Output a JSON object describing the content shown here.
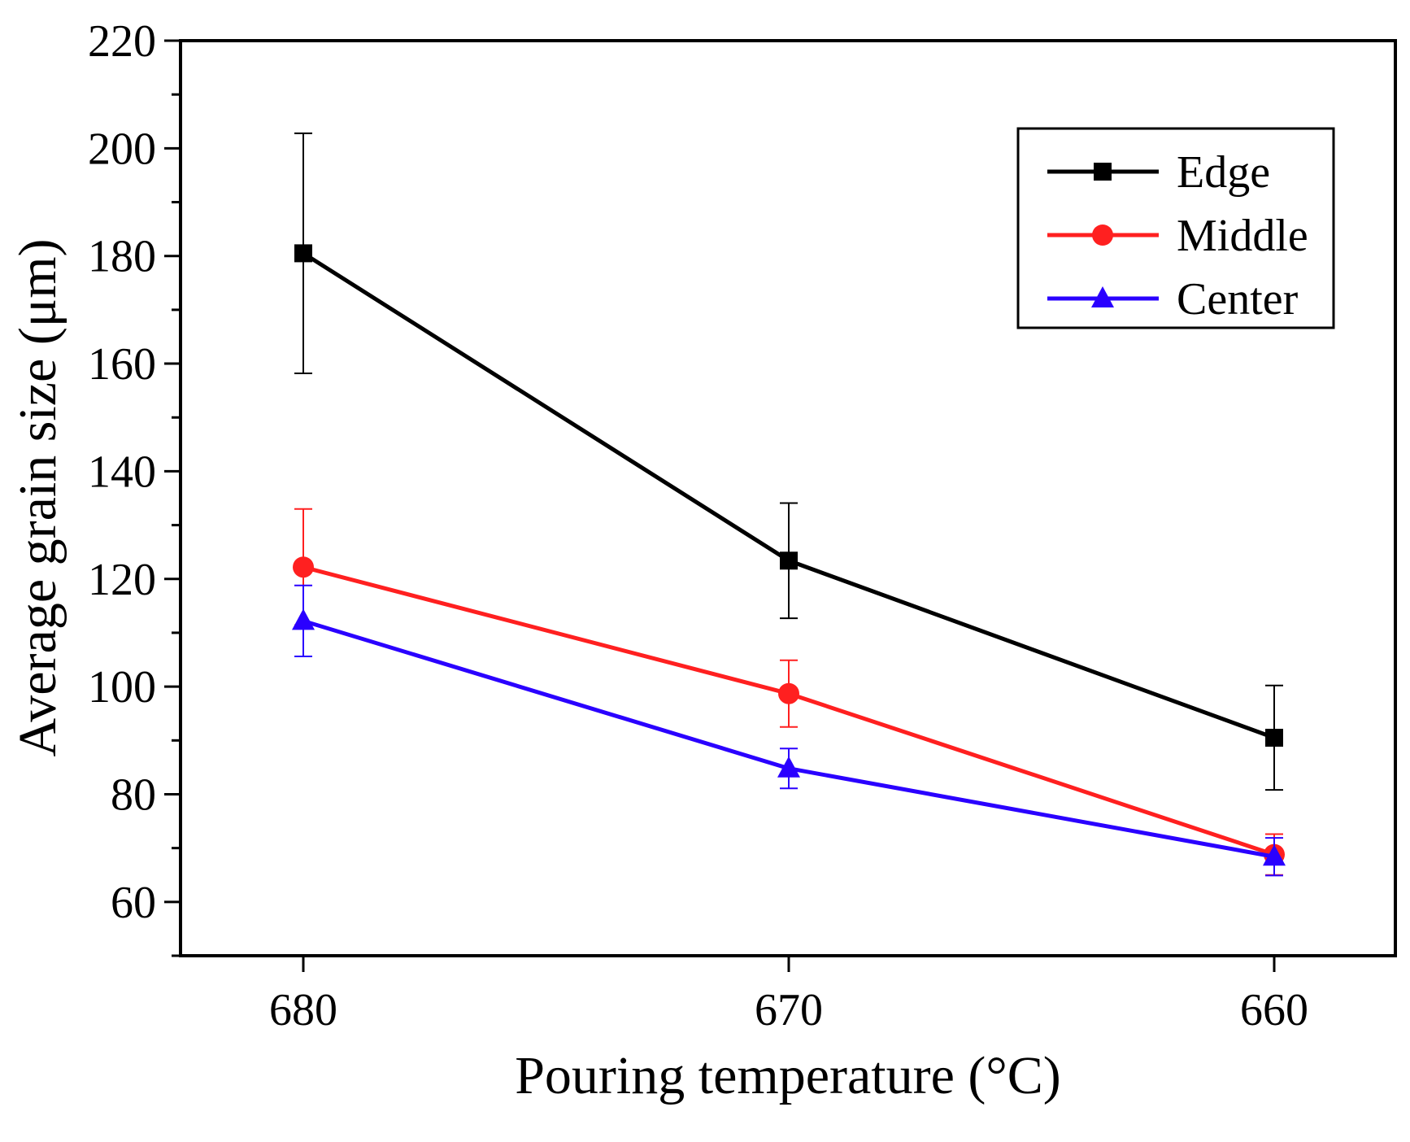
{
  "chart_data": {
    "type": "line",
    "title": "",
    "xlabel": "Pouring temperature (°C)",
    "ylabel": "Average grain size (μm)",
    "categories": [
      "680",
      "670",
      "660"
    ],
    "ylim": [
      50,
      220
    ],
    "yticks": [
      60,
      80,
      100,
      120,
      140,
      160,
      180,
      200,
      220
    ],
    "grid": false,
    "legend_position": "top-right",
    "series": [
      {
        "name": "Edge",
        "color": "#000000",
        "marker": "square",
        "values": [
          180.5,
          123.4,
          90.5
        ],
        "errors": [
          22.3,
          10.7,
          9.7
        ]
      },
      {
        "name": "Middle",
        "color": "#ff2020",
        "marker": "circle",
        "values": [
          122.2,
          98.7,
          68.8
        ],
        "errors": [
          10.8,
          6.2,
          3.8
        ]
      },
      {
        "name": "Center",
        "color": "#2a00ff",
        "marker": "triangle",
        "values": [
          112.2,
          84.8,
          68.4
        ],
        "errors": [
          6.6,
          3.7,
          3.5
        ]
      }
    ]
  }
}
